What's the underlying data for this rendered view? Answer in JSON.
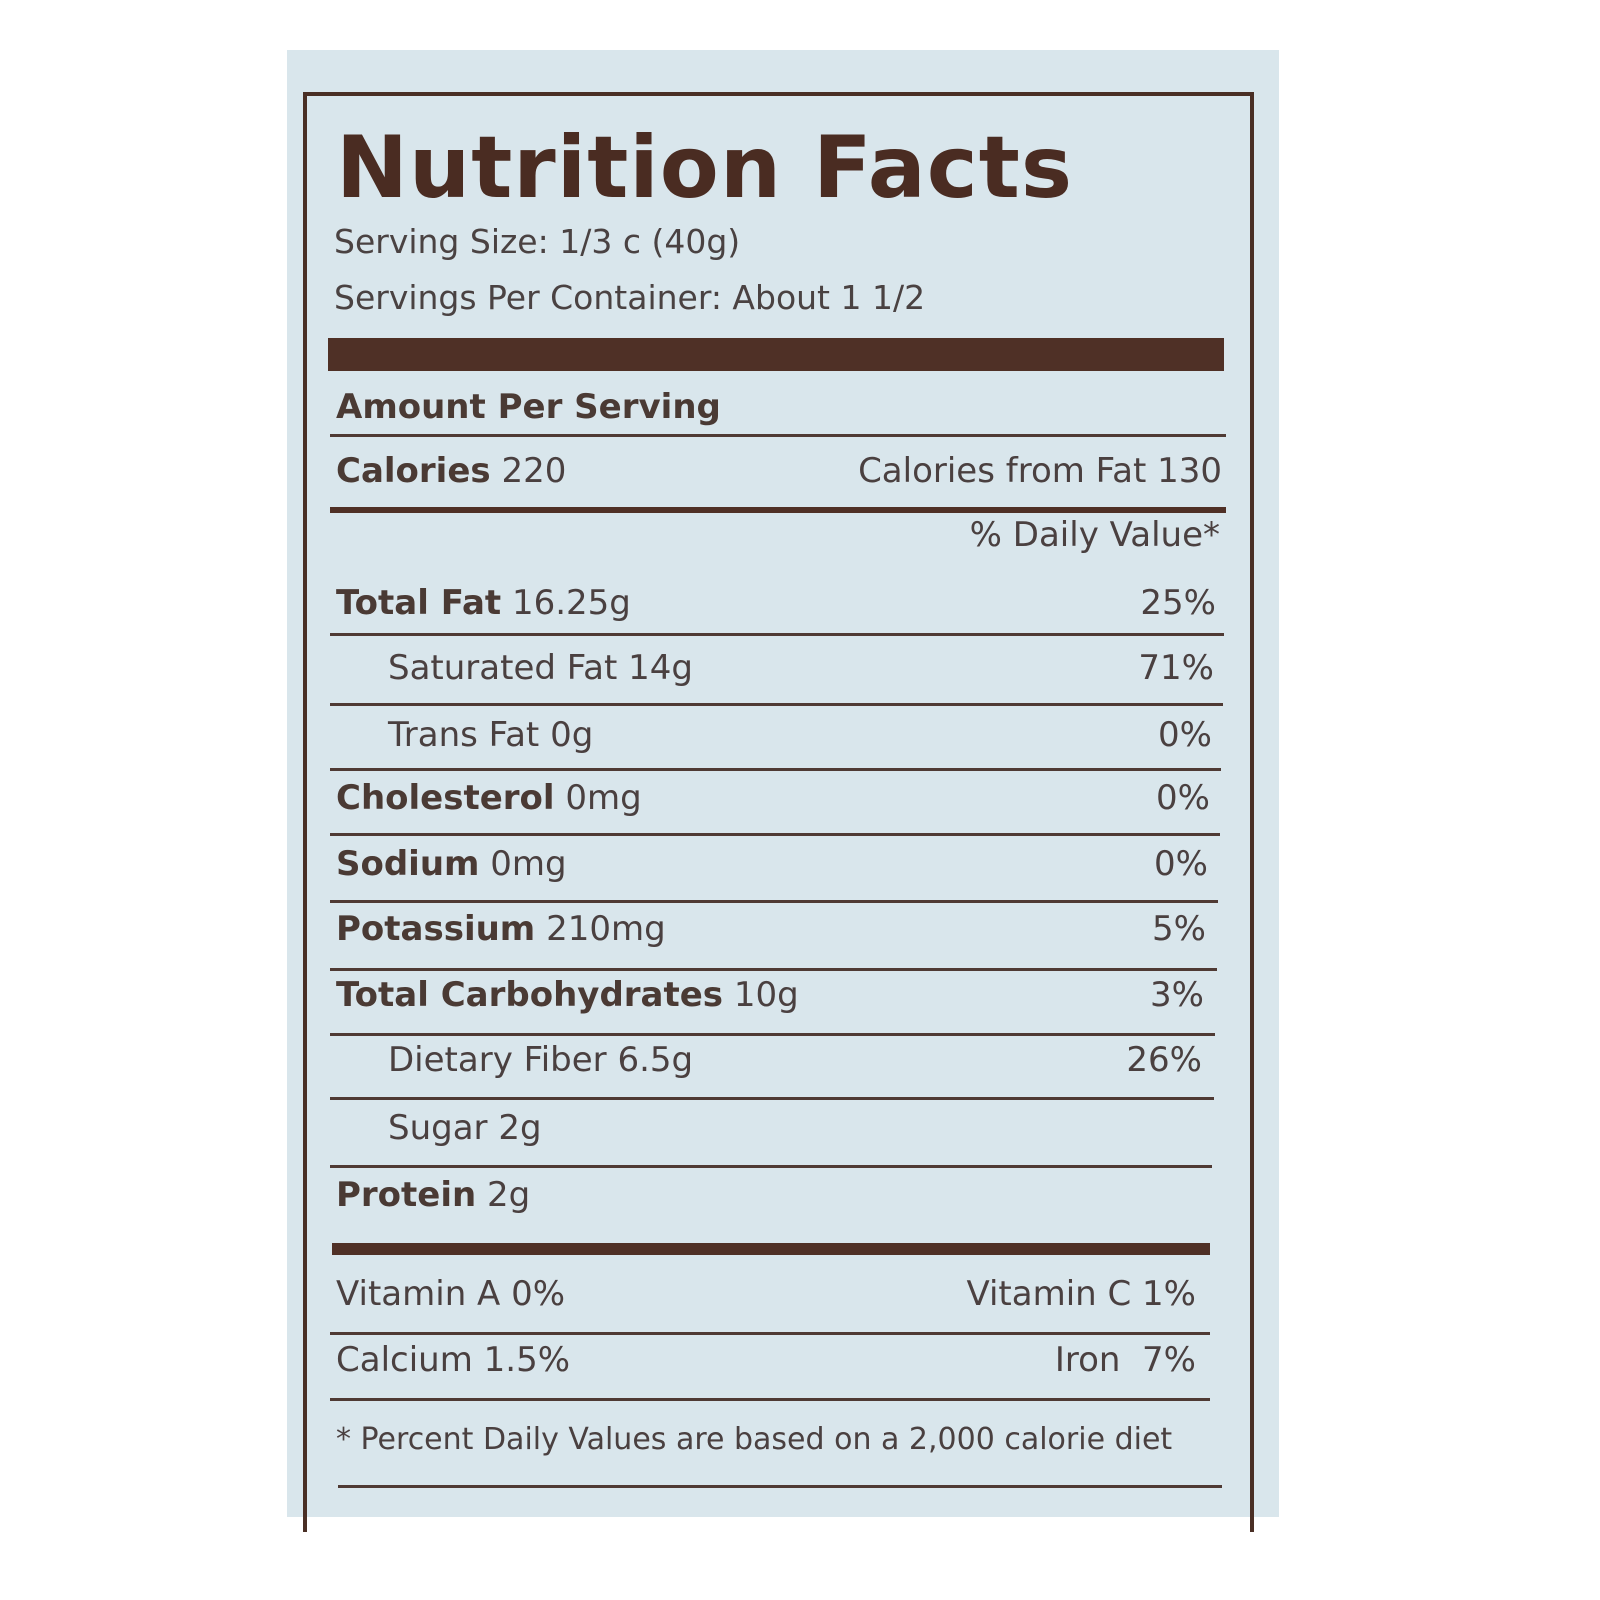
{
  "title": "Nutrition Facts",
  "serving_size": "Serving Size: 1/3 c (40g)",
  "servings_per_container": "Servings Per Container: About 1 1/2",
  "amount_per_serving": "Amount Per Serving",
  "calories": {
    "label": "Calories",
    "value": "220",
    "from_fat": "Calories from Fat 130"
  },
  "daily_value_header": "% Daily Value*",
  "nutrients": [
    {
      "label": "Total Fat",
      "amount": "16.25g",
      "dv": "25%",
      "bold": true,
      "indent": false
    },
    {
      "label": "Saturated Fat",
      "amount": "14g",
      "dv": "71%",
      "bold": false,
      "indent": true
    },
    {
      "label": "Trans Fat",
      "amount": "0g",
      "dv": "0%",
      "bold": false,
      "indent": true
    },
    {
      "label": "Cholesterol",
      "amount": "0mg",
      "dv": "0%",
      "bold": true,
      "indent": false
    },
    {
      "label": "Sodium",
      "amount": "0mg",
      "dv": "0%",
      "bold": true,
      "indent": false
    },
    {
      "label": "Potassium",
      "amount": "210mg",
      "dv": "5%",
      "bold": true,
      "indent": false
    },
    {
      "label": "Total Carbohydrates",
      "amount": "10g",
      "dv": "3%",
      "bold": true,
      "indent": false
    },
    {
      "label": "Dietary Fiber",
      "amount": "6.5g",
      "dv": "26%",
      "bold": false,
      "indent": true
    },
    {
      "label": "Sugar",
      "amount": "2g",
      "dv": "",
      "bold": false,
      "indent": true
    },
    {
      "label": "Protein",
      "amount": "2g",
      "dv": "",
      "bold": true,
      "indent": false
    }
  ],
  "vitamins": [
    {
      "left": "Vitamin A 0%",
      "right": "Vitamin C 1%"
    },
    {
      "left": "Calcium 1.5%",
      "right": "Iron  7%"
    }
  ],
  "footnote": "* Percent Daily Values are based on a 2,000 calorie diet",
  "colors": {
    "panel": "#d9e6ec",
    "ink": "#4a2f25",
    "text": "#4a4040"
  }
}
